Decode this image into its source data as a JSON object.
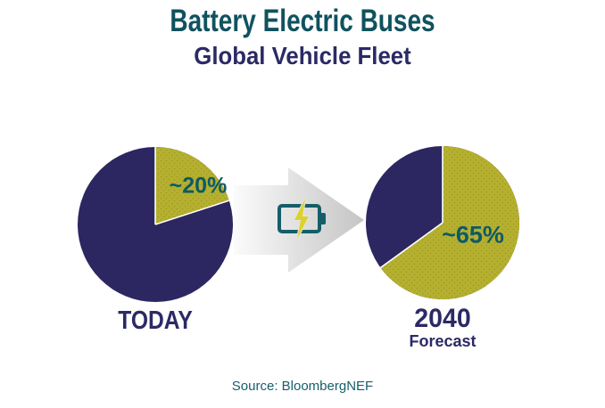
{
  "theme": {
    "pageBg": "#ffffff",
    "teal": "#10525f",
    "navy": "#2b2a66",
    "sliceLabel": "#0d5a66",
    "sourceTeal": "#175f6b",
    "arrowLight": "#fbfbfb",
    "arrowDark": "#c5c5c5",
    "batteryTeal": "#155e68",
    "bolt": "#ddd12e",
    "boltHalo": "#e6e6e6"
  },
  "chart_data": {
    "type": "pie",
    "title": "Battery Electric Buses",
    "subtitle": "Global Vehicle Fleet",
    "legend": "none",
    "slice_dot_color": "#9f9a24",
    "charts": [
      {
        "label": "TODAY",
        "slices": [
          {
            "name": "battery-electric-share",
            "value": 20,
            "display": "~20%",
            "color": "#b5b02f"
          },
          {
            "name": "rest-of-fleet",
            "value": 80,
            "color": "#2c2661"
          }
        ]
      },
      {
        "label": "2040",
        "sublabel": "Forecast",
        "slices": [
          {
            "name": "battery-electric-share",
            "value": 65,
            "display": "~65%",
            "color": "#b5b02f"
          },
          {
            "name": "rest-of-fleet",
            "value": 35,
            "color": "#2c2661"
          }
        ]
      }
    ],
    "source": "Source: BloombergNEF"
  }
}
